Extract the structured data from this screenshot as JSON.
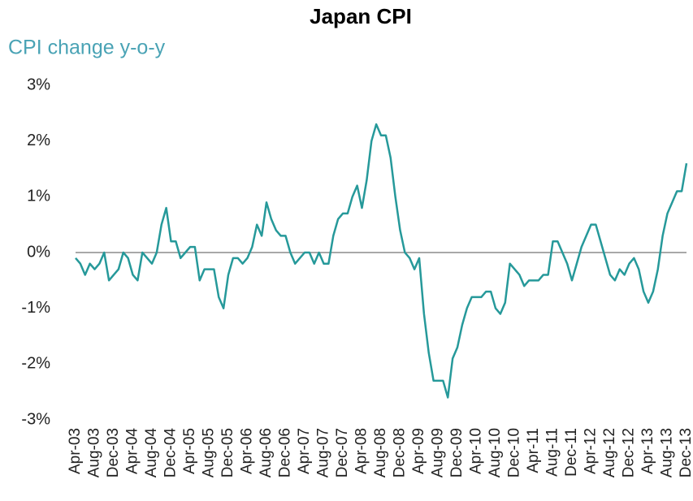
{
  "chart_data": {
    "type": "line",
    "title": "Japan CPI",
    "subtitle": "CPI change y-o-y",
    "categories": [
      "Apr-03",
      null,
      null,
      null,
      "Aug-03",
      null,
      null,
      null,
      "Dec-03",
      null,
      null,
      null,
      "Apr-04",
      null,
      null,
      null,
      "Aug-04",
      null,
      null,
      null,
      "Dec-04",
      null,
      null,
      null,
      "Apr-05",
      null,
      null,
      null,
      "Aug-05",
      null,
      null,
      null,
      "Dec-05",
      null,
      null,
      null,
      "Apr-06",
      null,
      null,
      null,
      "Aug-06",
      null,
      null,
      null,
      "Dec-06",
      null,
      null,
      null,
      "Apr-07",
      null,
      null,
      null,
      "Aug-07",
      null,
      null,
      null,
      "Dec-07",
      null,
      null,
      null,
      "Apr-08",
      null,
      null,
      null,
      "Aug-08",
      null,
      null,
      null,
      "Dec-08",
      null,
      null,
      null,
      "Apr-09",
      null,
      null,
      null,
      "Aug-09",
      null,
      null,
      null,
      "Dec-09",
      null,
      null,
      null,
      "Apr-10",
      null,
      null,
      null,
      "Aug-10",
      null,
      null,
      null,
      "Dec-10",
      null,
      null,
      null,
      "Apr-11",
      null,
      null,
      null,
      "Aug-11",
      null,
      null,
      null,
      "Dec-11",
      null,
      null,
      null,
      "Apr-12",
      null,
      null,
      null,
      "Aug-12",
      null,
      null,
      null,
      "Dec-12",
      null,
      null,
      null,
      "Apr-13",
      null,
      null,
      null,
      "Aug-13",
      null,
      null,
      null,
      "Dec-13"
    ],
    "series": [
      {
        "name": "CPI change y-o-y",
        "color": "#26999a",
        "values": [
          -0.1,
          -0.2,
          -0.4,
          -0.2,
          -0.3,
          -0.2,
          0,
          -0.5,
          -0.4,
          -0.3,
          0,
          -0.1,
          -0.4,
          -0.5,
          0,
          -0.1,
          -0.2,
          0,
          0.5,
          0.8,
          0.2,
          0.2,
          -0.1,
          0,
          0.1,
          0.1,
          -0.5,
          -0.3,
          -0.3,
          -0.3,
          -0.8,
          -1.0,
          -0.4,
          -0.1,
          -0.1,
          -0.2,
          -0.1,
          0.1,
          0.5,
          0.3,
          0.9,
          0.6,
          0.4,
          0.3,
          0.3,
          0,
          -0.2,
          -0.1,
          0,
          0,
          -0.2,
          0,
          -0.2,
          -0.2,
          0.3,
          0.6,
          0.7,
          0.7,
          1.0,
          1.2,
          0.8,
          1.3,
          2.0,
          2.3,
          2.1,
          2.1,
          1.7,
          1.0,
          0.4,
          0,
          -0.1,
          -0.3,
          -0.1,
          -1.1,
          -1.8,
          -2.3,
          -2.3,
          -2.3,
          -2.6,
          -1.9,
          -1.7,
          -1.3,
          -1.0,
          -0.8,
          -0.8,
          -0.8,
          -0.7,
          -0.7,
          -1.0,
          -1.1,
          -0.9,
          -0.2,
          -0.3,
          -0.4,
          -0.6,
          -0.5,
          -0.5,
          -0.5,
          -0.4,
          -0.4,
          0.2,
          0.2,
          0,
          -0.2,
          -0.5,
          -0.2,
          0.1,
          0.3,
          0.5,
          0.5,
          0.2,
          -0.1,
          -0.4,
          -0.5,
          -0.3,
          -0.4,
          -0.2,
          -0.1,
          -0.3,
          -0.7,
          -0.9,
          -0.7,
          -0.3,
          0.3,
          0.7,
          0.9,
          1.1,
          1.1,
          1.6
        ]
      }
    ],
    "ylim": [
      -3,
      3
    ],
    "yticks": [
      {
        "value": -3,
        "label": "-3%"
      },
      {
        "value": -2,
        "label": "-2%"
      },
      {
        "value": -1,
        "label": "-1%"
      },
      {
        "value": 0,
        "label": "0%"
      },
      {
        "value": 1,
        "label": "1%"
      },
      {
        "value": 2,
        "label": "2%"
      },
      {
        "value": 3,
        "label": "3%"
      }
    ],
    "grid": false,
    "zero_line_color": "#8c8c8c"
  }
}
